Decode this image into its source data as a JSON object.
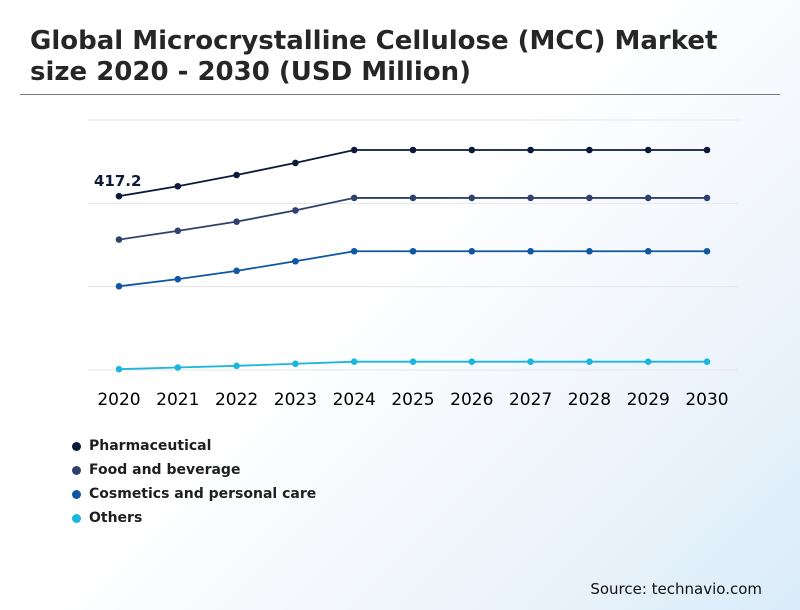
{
  "title": "Global Microcrystalline Cellulose (MCC) Market size 2020 - 2030 (USD Million)",
  "source": "Source: technavio.com",
  "chart_data": {
    "type": "line",
    "title": "Global Microcrystalline Cellulose (MCC) Market size 2020 - 2030 (USD Million)",
    "categories": [
      "2020",
      "2021",
      "2022",
      "2023",
      "2024",
      "2025",
      "2026",
      "2027",
      "2028",
      "2029",
      "2030"
    ],
    "ylim": [
      0,
      600
    ],
    "grid": true,
    "legend_position": "bottom-left",
    "series": [
      {
        "name": "Pharmaceutical",
        "color": "#0b1a3b",
        "values": [
          417.2,
          441,
          468,
          497,
          528,
          528,
          528,
          528,
          528,
          528,
          528
        ]
      },
      {
        "name": "Food and beverage",
        "color": "#2f426e",
        "values": [
          313,
          334,
          356,
          383,
          413,
          413,
          413,
          413,
          413,
          413,
          413
        ]
      },
      {
        "name": "Cosmetics and personal care",
        "color": "#0f56a3",
        "values": [
          201,
          218,
          238,
          261,
          285,
          285,
          285,
          285,
          285,
          285,
          285
        ]
      },
      {
        "name": "Others",
        "color": "#1ab6dd",
        "values": [
          2,
          6,
          10,
          15,
          20,
          20,
          20,
          20,
          20,
          20,
          20
        ]
      }
    ],
    "annotations": [
      {
        "series": "Pharmaceutical",
        "category": "2020",
        "text": "417.2"
      }
    ]
  }
}
